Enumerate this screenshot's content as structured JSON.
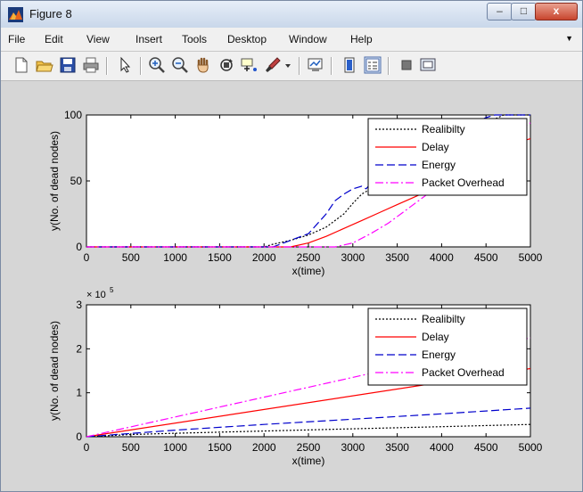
{
  "window": {
    "title": "Figure 8",
    "minimize_glyph": "–",
    "maximize_glyph": "□",
    "close_glyph": "x"
  },
  "menu": [
    "File",
    "Edit",
    "View",
    "Insert",
    "Tools",
    "Desktop",
    "Window",
    "Help"
  ],
  "toolbar_icons": [
    "new-figure-icon",
    "open-file-icon",
    "save-icon",
    "print-icon",
    "edit-plot-arrow-icon",
    "zoom-in-icon",
    "zoom-out-icon",
    "pan-hand-icon",
    "rotate-3d-icon",
    "data-cursor-icon",
    "brush-icon",
    "link-plot-icon",
    "colorbar-icon",
    "legend-icon",
    "hide-plot-tools-icon",
    "show-plot-tools-icon"
  ],
  "colors": {
    "reliability": "#000000",
    "delay": "#ff0000",
    "energy": "#0000cc",
    "packet_overhead": "#ff00ff"
  },
  "chart_data": [
    {
      "type": "line",
      "xlabel": "x(time)",
      "ylabel": "y(No. of dead nodes)",
      "xlim": [
        0,
        5000
      ],
      "ylim": [
        0,
        100
      ],
      "xticks": [
        "0",
        "500",
        "1000",
        "1500",
        "2000",
        "2500",
        "3000",
        "3500",
        "4000",
        "4500",
        "5000"
      ],
      "yticks": [
        "0",
        "50",
        "100"
      ],
      "exponent": "",
      "legend_position": "top-right",
      "series": [
        {
          "name": "Realibilty",
          "style": "dotted",
          "color": "#000000",
          "x": [
            0,
            2000,
            2100,
            2300,
            2500,
            2700,
            2900,
            3000,
            3100,
            3300,
            3500,
            3700,
            3900,
            4100,
            4300,
            4500,
            4700,
            4800,
            5000
          ],
          "y": [
            0,
            0,
            2,
            5,
            9,
            15,
            25,
            33,
            40,
            48,
            55,
            62,
            70,
            78,
            86,
            94,
            100,
            100,
            100
          ]
        },
        {
          "name": "Delay",
          "style": "solid",
          "color": "#ff0000",
          "x": [
            0,
            2300,
            2500,
            2700,
            2900,
            3100,
            3300,
            3500,
            3700,
            3900,
            4100,
            4300,
            4500,
            4700,
            4900,
            5000
          ],
          "y": [
            0,
            0,
            3,
            8,
            14,
            20,
            26,
            32,
            38,
            44,
            52,
            60,
            68,
            74,
            80,
            82
          ]
        },
        {
          "name": "Energy",
          "style": "dashed",
          "color": "#0000cc",
          "x": [
            0,
            2100,
            2300,
            2500,
            2700,
            2800,
            2900,
            3000,
            3100,
            3150,
            3300,
            3500,
            3700,
            3900,
            4100,
            4300,
            4500,
            4600,
            4800,
            5000
          ],
          "y": [
            0,
            0,
            5,
            10,
            25,
            35,
            40,
            44,
            46,
            44,
            56,
            64,
            70,
            78,
            86,
            92,
            98,
            100,
            100,
            100
          ]
        },
        {
          "name": "Packet Overhead",
          "style": "dashdot",
          "color": "#ff00ff",
          "x": [
            0,
            2800,
            3000,
            3200,
            3400,
            3600,
            3800,
            4000,
            4200,
            4400,
            4600,
            4800,
            5000
          ],
          "y": [
            0,
            0,
            3,
            10,
            18,
            28,
            38,
            48,
            58,
            68,
            76,
            86,
            94
          ]
        }
      ]
    },
    {
      "type": "line",
      "xlabel": "x(time)",
      "ylabel": "y(No. of dead nodes)",
      "xlim": [
        0,
        5000
      ],
      "ylim": [
        0,
        3
      ],
      "xticks": [
        "0",
        "500",
        "1000",
        "1500",
        "2000",
        "2500",
        "3000",
        "3500",
        "4000",
        "4500",
        "5000"
      ],
      "yticks": [
        "0",
        "1",
        "2",
        "3"
      ],
      "exponent": "× 10",
      "exponent_power": "5",
      "legend_position": "top-right",
      "series": [
        {
          "name": "Realibilty",
          "style": "dotted",
          "color": "#000000",
          "x": [
            0,
            500,
            1000,
            2000,
            3000,
            4000,
            5000
          ],
          "y": [
            0,
            0.05,
            0.08,
            0.13,
            0.18,
            0.23,
            0.28
          ]
        },
        {
          "name": "Delay",
          "style": "solid",
          "color": "#ff0000",
          "x": [
            0,
            5000
          ],
          "y": [
            0,
            1.55
          ]
        },
        {
          "name": "Energy",
          "style": "dashed",
          "color": "#0000cc",
          "x": [
            0,
            1000,
            2000,
            3000,
            4000,
            5000
          ],
          "y": [
            0,
            0.15,
            0.28,
            0.4,
            0.52,
            0.65
          ]
        },
        {
          "name": "Packet Overhead",
          "style": "dashdot",
          "color": "#ff00ff",
          "x": [
            0,
            5000
          ],
          "y": [
            0,
            2.25
          ]
        }
      ]
    }
  ]
}
